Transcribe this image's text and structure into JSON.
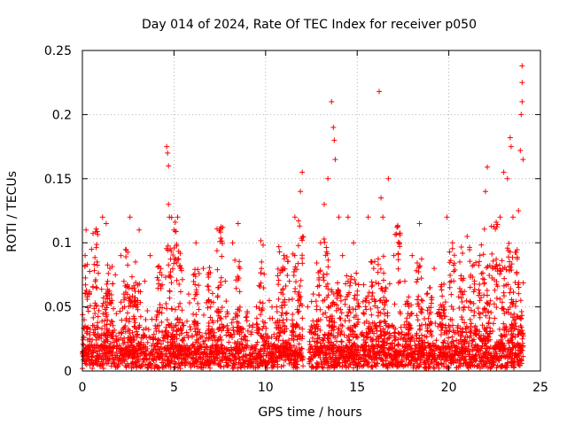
{
  "chart_data": {
    "type": "scatter",
    "title": "Day 014 of 2024, Rate Of TEC Index for receiver p050",
    "xlabel": "GPS time / hours",
    "ylabel": "ROTI / TECUs",
    "xlim": [
      0,
      25
    ],
    "ylim": [
      0,
      0.25
    ],
    "xticks": [
      0,
      5,
      10,
      15,
      20,
      25
    ],
    "xtick_labels": [
      "0",
      "5",
      "10",
      "15",
      "20",
      "25"
    ],
    "yticks": [
      0,
      0.05,
      0.1,
      0.15,
      0.2,
      0.25
    ],
    "ytick_labels": [
      "0",
      "0.05",
      "0.1",
      "0.15",
      "0.2",
      "0.25"
    ],
    "grid": true,
    "marker": "+",
    "color": "#ff0000",
    "series": [
      {
        "name": "ROTI",
        "points": [
          [
            0.1,
            0.04
          ],
          [
            0.15,
            0.09
          ],
          [
            0.2,
            0.11
          ],
          [
            0.3,
            0.06
          ],
          [
            0.5,
            0.095
          ],
          [
            0.6,
            0.03
          ],
          [
            0.8,
            0.085
          ],
          [
            1.1,
            0.12
          ],
          [
            1.3,
            0.115
          ],
          [
            1.5,
            0.08
          ],
          [
            1.8,
            0.075
          ],
          [
            2.1,
            0.09
          ],
          [
            2.3,
            0.05
          ],
          [
            2.6,
            0.12
          ],
          [
            2.9,
            0.085
          ],
          [
            3.1,
            0.11
          ],
          [
            3.4,
            0.07
          ],
          [
            3.7,
            0.09
          ],
          [
            4.6,
            0.175
          ],
          [
            4.65,
            0.17
          ],
          [
            4.7,
            0.16
          ],
          [
            4.7,
            0.13
          ],
          [
            4.75,
            0.12
          ],
          [
            5.0,
            0.11
          ],
          [
            5.2,
            0.12
          ],
          [
            5.4,
            0.08
          ],
          [
            5.8,
            0.06
          ],
          [
            6.2,
            0.1
          ],
          [
            6.6,
            0.08
          ],
          [
            7.0,
            0.05
          ],
          [
            7.4,
            0.065
          ],
          [
            7.8,
            0.07
          ],
          [
            8.2,
            0.1
          ],
          [
            8.5,
            0.115
          ],
          [
            8.6,
            0.08
          ],
          [
            9.0,
            0.045
          ],
          [
            9.5,
            0.05
          ],
          [
            10.2,
            0.055
          ],
          [
            10.6,
            0.05
          ],
          [
            11.0,
            0.09
          ],
          [
            11.3,
            0.07
          ],
          [
            11.6,
            0.12
          ],
          [
            11.9,
            0.14
          ],
          [
            12.0,
            0.155
          ],
          [
            12.3,
            0.05
          ],
          [
            12.6,
            0.06
          ],
          [
            13.0,
            0.1
          ],
          [
            13.2,
            0.13
          ],
          [
            13.4,
            0.15
          ],
          [
            13.6,
            0.21
          ],
          [
            13.7,
            0.19
          ],
          [
            13.75,
            0.18
          ],
          [
            13.8,
            0.165
          ],
          [
            14.0,
            0.12
          ],
          [
            14.2,
            0.09
          ],
          [
            14.5,
            0.12
          ],
          [
            14.8,
            0.1
          ],
          [
            15.1,
            0.05
          ],
          [
            15.6,
            0.12
          ],
          [
            15.9,
            0.08
          ],
          [
            16.2,
            0.218
          ],
          [
            16.3,
            0.135
          ],
          [
            16.4,
            0.12
          ],
          [
            16.7,
            0.15
          ],
          [
            17.0,
            0.09
          ],
          [
            17.3,
            0.1
          ],
          [
            17.6,
            0.07
          ],
          [
            18.0,
            0.09
          ],
          [
            18.4,
            0.115
          ],
          [
            18.8,
            0.06
          ],
          [
            19.2,
            0.08
          ],
          [
            19.6,
            0.05
          ],
          [
            19.9,
            0.12
          ],
          [
            20.2,
            0.1
          ],
          [
            20.6,
            0.085
          ],
          [
            21.0,
            0.105
          ],
          [
            21.4,
            0.07
          ],
          [
            21.7,
            0.09
          ],
          [
            22.0,
            0.14
          ],
          [
            22.1,
            0.159
          ],
          [
            22.4,
            0.08
          ],
          [
            22.8,
            0.12
          ],
          [
            23.0,
            0.155
          ],
          [
            23.2,
            0.15
          ],
          [
            23.35,
            0.182
          ],
          [
            23.4,
            0.175
          ],
          [
            23.5,
            0.12
          ],
          [
            23.8,
            0.125
          ],
          [
            23.9,
            0.172
          ],
          [
            23.95,
            0.2
          ],
          [
            24.0,
            0.21
          ],
          [
            24.0,
            0.225
          ],
          [
            24.0,
            0.238
          ],
          [
            24.05,
            0.165
          ]
        ],
        "band_density_note": "dense baseline of points between 0.002 and 0.04 across all hours"
      }
    ]
  }
}
